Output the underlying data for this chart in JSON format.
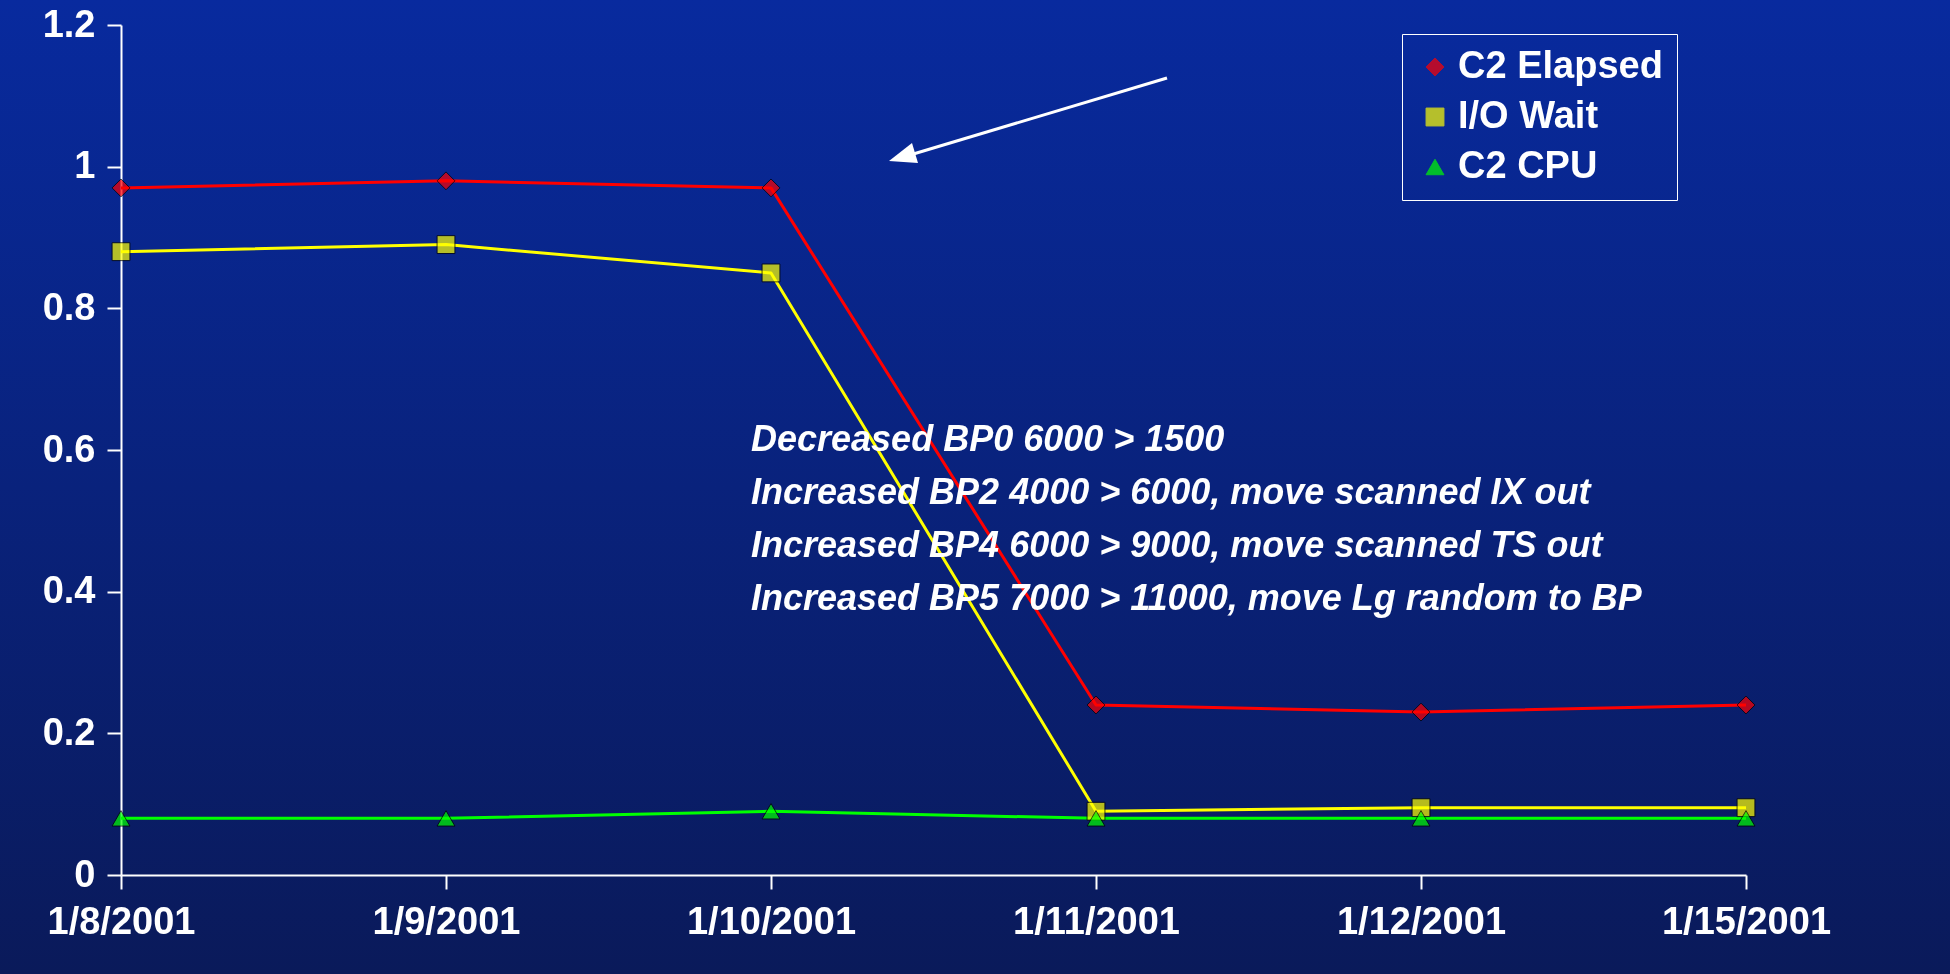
{
  "chart_data": {
    "type": "line",
    "categories": [
      "1/8/2001",
      "1/9/2001",
      "1/10/2001",
      "1/11/2001",
      "1/12/2001",
      "1/15/2001"
    ],
    "series": [
      {
        "name": "C2 Elapsed",
        "color": "#ff0000",
        "marker": "diamond",
        "values": [
          0.97,
          0.98,
          0.97,
          0.24,
          0.23,
          0.24
        ]
      },
      {
        "name": "I/O Wait",
        "color": "#ffff00",
        "marker": "square",
        "values": [
          0.88,
          0.89,
          0.85,
          0.09,
          0.095,
          0.095
        ]
      },
      {
        "name": "C2 CPU",
        "color": "#00ff00",
        "marker": "triangle",
        "values": [
          0.08,
          0.08,
          0.09,
          0.08,
          0.08,
          0.08
        ]
      }
    ],
    "ylim": [
      0,
      1.2
    ],
    "yticks": [
      0,
      0.2,
      0.4,
      0.6,
      0.8,
      1,
      1.2
    ],
    "grid": false,
    "legend": "top right",
    "annotations": [
      "Decreased BP0  6000 > 1500",
      "Increased BP2 4000 > 6000, move scanned IX out",
      "Increased BP4 6000 > 9000, move scanned TS out",
      "Increased BP5 7000 > 11000, move Lg random to BP"
    ]
  }
}
